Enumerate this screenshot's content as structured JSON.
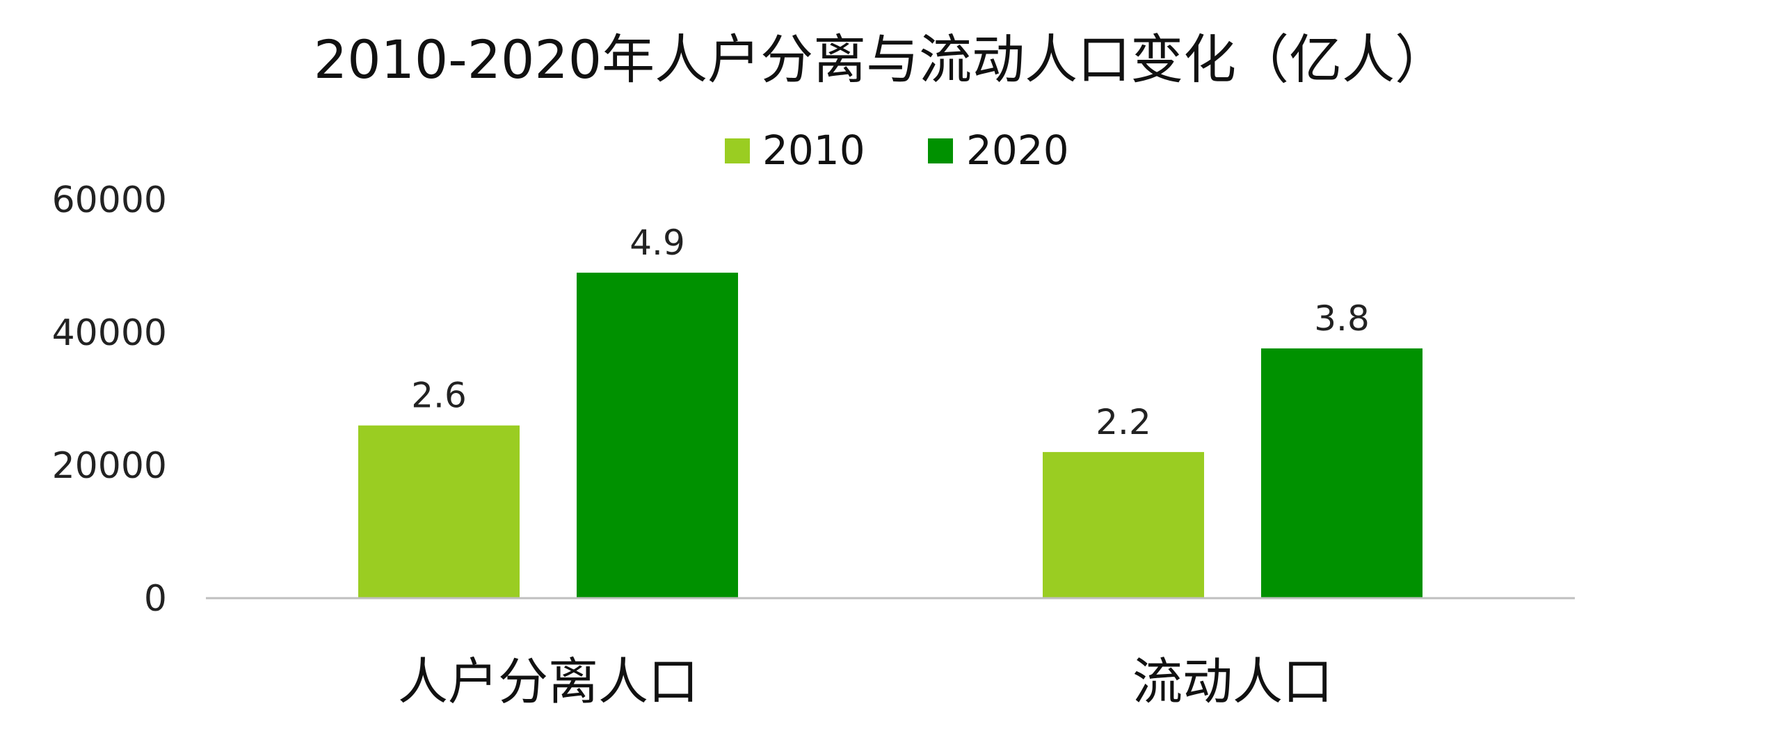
{
  "chart_data": {
    "type": "bar",
    "title": "2010-2020年人户分离与流动人口变化（亿人）",
    "categories": [
      "人户分离人口",
      "流动人口"
    ],
    "series": [
      {
        "name": "2010",
        "values": [
          26000,
          22000
        ],
        "data_labels": [
          "2.6",
          "2.2"
        ],
        "color": "#9ACD22"
      },
      {
        "name": "2020",
        "values": [
          49000,
          37600
        ],
        "data_labels": [
          "4.9",
          "3.8"
        ],
        "color": "#009100"
      }
    ],
    "y_ticks": [
      "0",
      "20000",
      "40000",
      "60000"
    ],
    "ylim": [
      0,
      60000
    ],
    "xlabel": "",
    "ylabel": "",
    "grid": false,
    "legend": "top-center"
  }
}
